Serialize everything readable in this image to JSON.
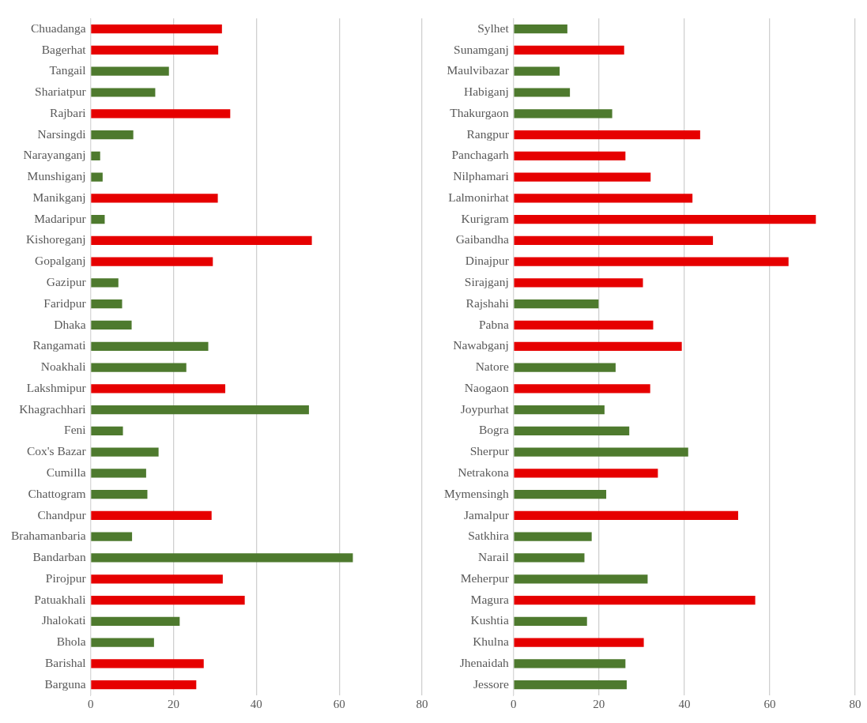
{
  "chart_data": [
    {
      "type": "bar",
      "orientation": "horizontal",
      "categories": [
        "Chuadanga",
        "Bagerhat",
        "Tangail",
        "Shariatpur",
        "Rajbari",
        "Narsingdi",
        "Narayanganj",
        "Munshiganj",
        "Manikganj",
        "Madaripur",
        "Kishoreganj",
        "Gopalganj",
        "Gazipur",
        "Faridpur",
        "Dhaka",
        "Rangamati",
        "Noakhali",
        "Lakshmipur",
        "Khagrachhari",
        "Feni",
        "Cox's Bazar",
        "Cumilla",
        "Chattogram",
        "Chandpur",
        "Brahamanbaria",
        "Bandarban",
        "Pirojpur",
        "Patuakhali",
        "Jhalokati",
        "Bhola",
        "Barishal",
        "Barguna"
      ],
      "values": [
        31.7,
        30.8,
        18.9,
        15.6,
        33.7,
        10.3,
        2.3,
        2.9,
        30.7,
        3.4,
        53.4,
        29.5,
        6.7,
        7.6,
        9.9,
        28.4,
        23.1,
        32.5,
        52.7,
        7.8,
        16.4,
        13.4,
        13.7,
        29.2,
        10,
        63.3,
        31.9,
        37.2,
        21.5,
        15.3,
        27.3,
        25.5
      ],
      "colors": [
        "#e60000",
        "#e60000",
        "#4e7a2e",
        "#4e7a2e",
        "#e60000",
        "#4e7a2e",
        "#4e7a2e",
        "#4e7a2e",
        "#e60000",
        "#4e7a2e",
        "#e60000",
        "#e60000",
        "#4e7a2e",
        "#4e7a2e",
        "#4e7a2e",
        "#4e7a2e",
        "#4e7a2e",
        "#e60000",
        "#4e7a2e",
        "#4e7a2e",
        "#4e7a2e",
        "#4e7a2e",
        "#4e7a2e",
        "#e60000",
        "#4e7a2e",
        "#4e7a2e",
        "#e60000",
        "#e60000",
        "#4e7a2e",
        "#4e7a2e",
        "#e60000",
        "#e60000"
      ],
      "xlim": [
        0,
        80
      ],
      "xticks": [
        0,
        20,
        40,
        60,
        80
      ],
      "grid": "x"
    },
    {
      "type": "bar",
      "orientation": "horizontal",
      "categories": [
        "Sylhet",
        "Sunamganj",
        "Maulvibazar",
        "Habiganj",
        "Thakurgaon",
        "Rangpur",
        "Panchagarh",
        "Nilphamari",
        "Lalmonirhat",
        "Kurigram",
        "Gaibandha",
        "Dinajpur",
        "Sirajganj",
        "Rajshahi",
        "Pabna",
        "Nawabganj",
        "Natore",
        "Naogaon",
        "Joypurhat",
        "Bogra",
        "Sherpur",
        "Netrakona",
        "Mymensingh",
        "Jamalpur",
        "Satkhira",
        "Narail",
        "Meherpur",
        "Magura",
        "Kushtia",
        "Khulna",
        "Jhenaidah",
        "Jessore"
      ],
      "values": [
        12.6,
        25.9,
        10.8,
        13.2,
        23.1,
        43.7,
        26.2,
        32.1,
        41.9,
        70.8,
        46.7,
        64.4,
        30.3,
        19.9,
        32.7,
        39.4,
        23.9,
        32,
        21.3,
        27.1,
        40.9,
        33.8,
        21.7,
        52.6,
        18.3,
        16.6,
        31.4,
        56.6,
        17.2,
        30.5,
        26.2,
        26.5
      ],
      "colors": [
        "#4e7a2e",
        "#e60000",
        "#4e7a2e",
        "#4e7a2e",
        "#4e7a2e",
        "#e60000",
        "#e60000",
        "#e60000",
        "#e60000",
        "#e60000",
        "#e60000",
        "#e60000",
        "#e60000",
        "#4e7a2e",
        "#e60000",
        "#e60000",
        "#4e7a2e",
        "#e60000",
        "#4e7a2e",
        "#4e7a2e",
        "#4e7a2e",
        "#e60000",
        "#4e7a2e",
        "#e60000",
        "#4e7a2e",
        "#4e7a2e",
        "#4e7a2e",
        "#e60000",
        "#4e7a2e",
        "#e60000",
        "#4e7a2e",
        "#4e7a2e"
      ],
      "xlim": [
        0,
        80
      ],
      "xticks": [
        0,
        20,
        40,
        60,
        80
      ],
      "grid": "x"
    }
  ]
}
